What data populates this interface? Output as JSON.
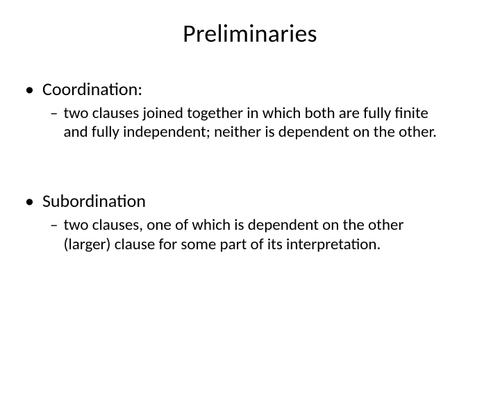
{
  "colors": {
    "text": "#000000",
    "background": "#ffffff",
    "bullet_level1": "#000000",
    "bullet_level2": "#000000"
  },
  "typography": {
    "title_fontsize": 36,
    "level1_fontsize": 26,
    "level2_fontsize": 23,
    "font_family": "Calibri"
  },
  "title": "Preliminaries",
  "items": [
    {
      "label": "Coordination:",
      "sub": "two clauses joined together in which both are fully finite and fully independent; neither is dependent on the other."
    },
    {
      "label": "Subordination",
      "sub": "two clauses, one of which is dependent on the other (larger) clause for some part of its interpretation."
    }
  ],
  "bullets": {
    "level1": "•",
    "level2": "–"
  }
}
